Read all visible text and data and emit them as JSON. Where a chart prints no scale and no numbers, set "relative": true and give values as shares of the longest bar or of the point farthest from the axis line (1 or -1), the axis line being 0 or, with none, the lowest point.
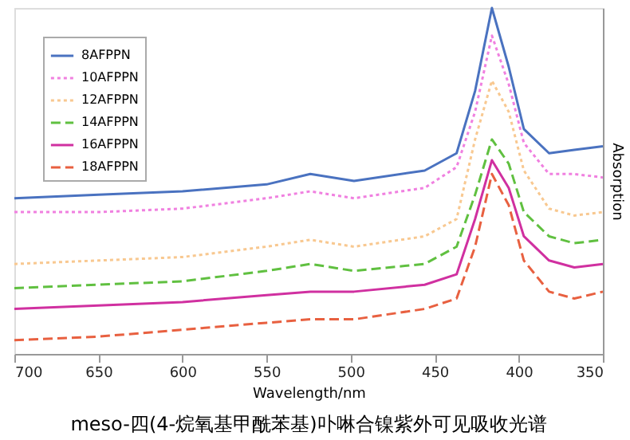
{
  "chart_data": {
    "type": "line",
    "xlabel": "Wavelength/nm",
    "ylabel": "Absorption",
    "relative": true,
    "annotations": [
      "meso-四(4-烷氧基甲酰苯基)卟啉合镍紫外可见吸收光谱"
    ],
    "xlim": [
      700,
      350
    ],
    "xticks": [
      700,
      650,
      600,
      550,
      500,
      450,
      400,
      350
    ],
    "grid": false,
    "legend": "top left",
    "marker": "none",
    "x": [
      700,
      650,
      600,
      550,
      524,
      498,
      456,
      437,
      426,
      416,
      406,
      397,
      382,
      367,
      350
    ],
    "series": [
      {
        "name": "8AFPPN",
        "color": "#4a72c0",
        "line_style": "solid",
        "values": [
          0.45,
          0.46,
          0.47,
          0.49,
          0.52,
          0.5,
          0.53,
          0.58,
          0.76,
          1.0,
          0.83,
          0.65,
          0.58,
          0.59,
          0.6
        ]
      },
      {
        "name": "10AFPPN",
        "color": "#f080e0",
        "line_style": "dotted",
        "values": [
          0.41,
          0.41,
          0.42,
          0.45,
          0.47,
          0.45,
          0.48,
          0.54,
          0.7,
          0.92,
          0.78,
          0.61,
          0.52,
          0.52,
          0.51
        ]
      },
      {
        "name": "12AFPPN",
        "color": "#f8c890",
        "line_style": "dotted",
        "values": [
          0.26,
          0.27,
          0.28,
          0.31,
          0.33,
          0.31,
          0.34,
          0.39,
          0.62,
          0.79,
          0.7,
          0.53,
          0.42,
          0.4,
          0.41
        ]
      },
      {
        "name": "14AFPPN",
        "color": "#60c040",
        "line_style": "dashed",
        "values": [
          0.19,
          0.2,
          0.21,
          0.24,
          0.26,
          0.24,
          0.26,
          0.31,
          0.46,
          0.62,
          0.55,
          0.41,
          0.34,
          0.32,
          0.33
        ]
      },
      {
        "name": "16AFPPN",
        "color": "#d030a0",
        "line_style": "solid",
        "values": [
          0.13,
          0.14,
          0.15,
          0.17,
          0.18,
          0.18,
          0.2,
          0.23,
          0.39,
          0.56,
          0.48,
          0.34,
          0.27,
          0.25,
          0.26
        ]
      },
      {
        "name": "18AFPPN",
        "color": "#e86040",
        "line_style": "dashed",
        "values": [
          0.04,
          0.05,
          0.07,
          0.09,
          0.1,
          0.1,
          0.13,
          0.16,
          0.31,
          0.52,
          0.43,
          0.27,
          0.18,
          0.16,
          0.18
        ]
      }
    ]
  }
}
